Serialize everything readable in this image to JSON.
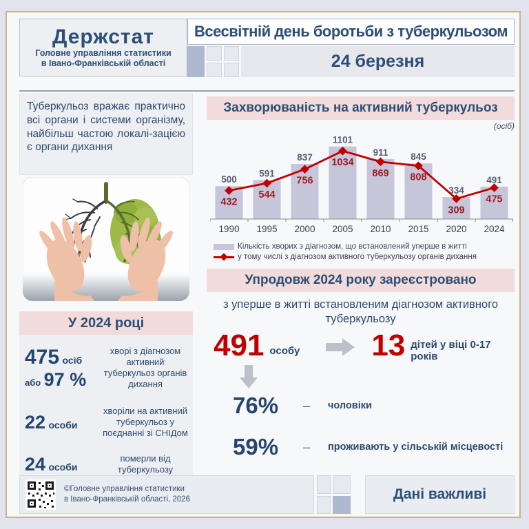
{
  "header": {
    "logo_title": "Держстат",
    "logo_subtitle_line1": "Головне управління статистики",
    "logo_subtitle_line2": "в Івано-Франківській області",
    "title": "Всесвітній день боротьби з туберкульозом",
    "date": "24 березня"
  },
  "intro_text": "Туберкульоз вражає практично всі органи і системи організму, найбільш частою локалі-зацією є органи дихання",
  "chart_section": {
    "title": "Захворюваність  на активний туберкульоз",
    "unit": "(осіб)"
  },
  "chart_data": {
    "type": "bar",
    "categories": [
      "1990",
      "1995",
      "2000",
      "2005",
      "2010",
      "2015",
      "2020",
      "2024"
    ],
    "series": [
      {
        "name": "Кількість  хворих з діагнозом,  що встановлений  уперше в житті",
        "type": "bar",
        "values": [
          500,
          591,
          837,
          1101,
          911,
          845,
          334,
          491
        ],
        "color": "#c7c5da"
      },
      {
        "name": "у тому  числі з діагнозом  активного  туберкульозу  органів  дихання",
        "type": "line",
        "values": [
          432,
          544,
          756,
          1034,
          869,
          808,
          309,
          475
        ],
        "color": "#c00000"
      }
    ],
    "title": "Захворюваність на активний туберкульоз",
    "ylabel": "осіб",
    "ylim": [
      0,
      1150
    ],
    "grid": false,
    "legend_position": "bottom"
  },
  "year2024_section": {
    "title": "У 2024 році",
    "items": [
      {
        "value": "475",
        "unit": "осіб",
        "prefix2": "або",
        "value2": "97 %",
        "label": "хворі з діагнозом активний туберкульоз  органів дихання"
      },
      {
        "value": "22",
        "unit": "особи",
        "label": "хворіли на активний туберкульоз у поєднанні зі СНІДом"
      },
      {
        "value": "24",
        "unit": "особи",
        "label": "померли від туберкульозу"
      }
    ]
  },
  "registered_section": {
    "title": "Упродовж  2024 року зареєстровано",
    "subtitle": "з уперше в житті встановленим діагнозом активного туберкульозу",
    "total_value": "491",
    "total_unit": "особу",
    "children_value": "13",
    "children_label": "дітей у  віці 0-17 років",
    "dash": "–",
    "stats": [
      {
        "value": "76%",
        "label": "чоловіки"
      },
      {
        "value": "59%",
        "label": "проживають у сільській місцевості"
      }
    ]
  },
  "footer": {
    "copyright_line1": "©Головне управління статистики",
    "copyright_line2": "в Івано-Франківській області, 2026",
    "slogan": "Дані важливі"
  },
  "colors": {
    "accent_red": "#c00000",
    "navy": "#2d4e76",
    "bar_fill": "#c7c5da",
    "pink_header": "#f1dcdb",
    "frame_gold": "#c8b48c"
  }
}
